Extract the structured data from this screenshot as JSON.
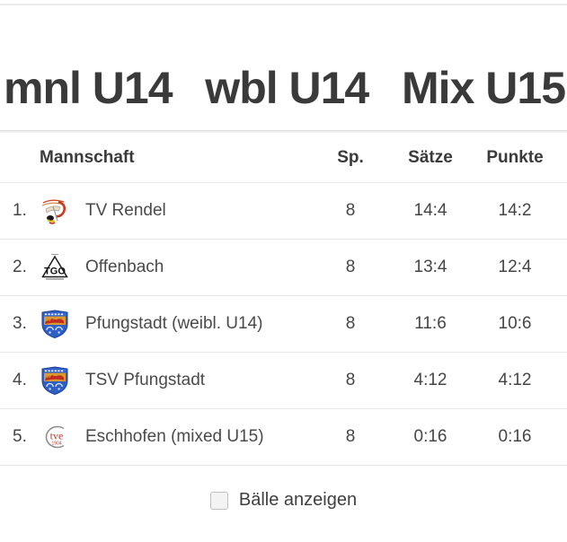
{
  "tabs": [
    {
      "label": "mnl U14"
    },
    {
      "label": "wbl U14"
    },
    {
      "label": "Mix U15"
    }
  ],
  "table": {
    "columns": {
      "team": "Mannschaft",
      "games": "Sp.",
      "sets": "Sätze",
      "points": "Punkte"
    },
    "rows": [
      {
        "rank": "1.",
        "team": "TV Rendel",
        "logo": "tv-rendel-logo",
        "games": "8",
        "sets": "14:4",
        "points": "14:2"
      },
      {
        "rank": "2.",
        "team": "Offenbach",
        "logo": "tgo-offenbach-logo",
        "games": "8",
        "sets": "13:4",
        "points": "12:4"
      },
      {
        "rank": "3.",
        "team": "Pfungstadt (weibl. U14)",
        "logo": "pfungstadt-crest-logo",
        "games": "8",
        "sets": "11:6",
        "points": "10:6"
      },
      {
        "rank": "4.",
        "team": "TSV Pfungstadt",
        "logo": "pfungstadt-crest-logo",
        "games": "8",
        "sets": "4:12",
        "points": "4:12"
      },
      {
        "rank": "5.",
        "team": "Eschhofen (mixed U15)",
        "logo": "tve-eschhofen-logo",
        "games": "8",
        "sets": "0:16",
        "points": "0:16"
      }
    ]
  },
  "footer": {
    "checkbox_label": "Bälle anzeigen",
    "checkbox_checked": false
  },
  "colors": {
    "text": "#3f3f3f",
    "divider": "#e7e7e7",
    "tve_red": "#c0392b",
    "crest_blue": "#2f5fc4",
    "crest_red": "#c22b20",
    "crest_gold": "#d89a2e"
  }
}
